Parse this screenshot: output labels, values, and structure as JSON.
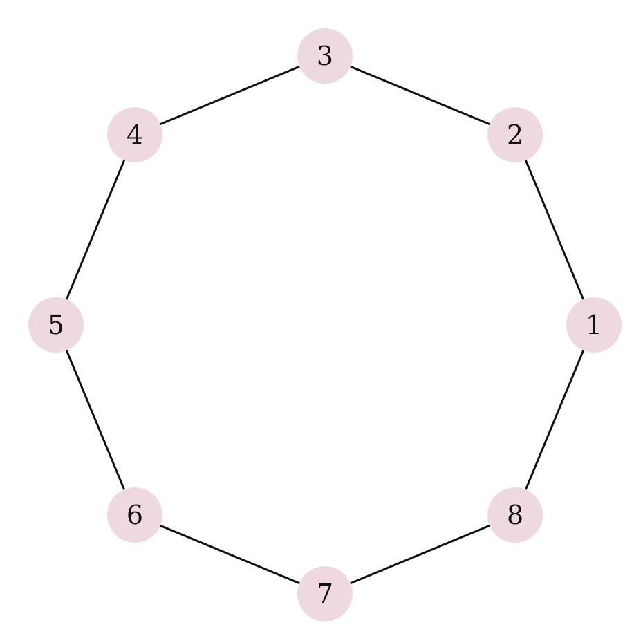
{
  "graph": {
    "node_fill": "#efd9e1",
    "edge_color": "#111111",
    "nodes": [
      {
        "id": "n1",
        "label": "1",
        "angle_deg": 0
      },
      {
        "id": "n2",
        "label": "2",
        "angle_deg": 45
      },
      {
        "id": "n3",
        "label": "3",
        "angle_deg": 90
      },
      {
        "id": "n4",
        "label": "4",
        "angle_deg": 135
      },
      {
        "id": "n5",
        "label": "5",
        "angle_deg": 180
      },
      {
        "id": "n6",
        "label": "6",
        "angle_deg": 225
      },
      {
        "id": "n7",
        "label": "7",
        "angle_deg": 270
      },
      {
        "id": "n8",
        "label": "8",
        "angle_deg": 315
      }
    ],
    "edges": [
      [
        "1",
        "2"
      ],
      [
        "2",
        "3"
      ],
      [
        "3",
        "4"
      ],
      [
        "4",
        "5"
      ],
      [
        "5",
        "6"
      ],
      [
        "6",
        "7"
      ],
      [
        "7",
        "8"
      ],
      [
        "8",
        "1"
      ]
    ]
  }
}
